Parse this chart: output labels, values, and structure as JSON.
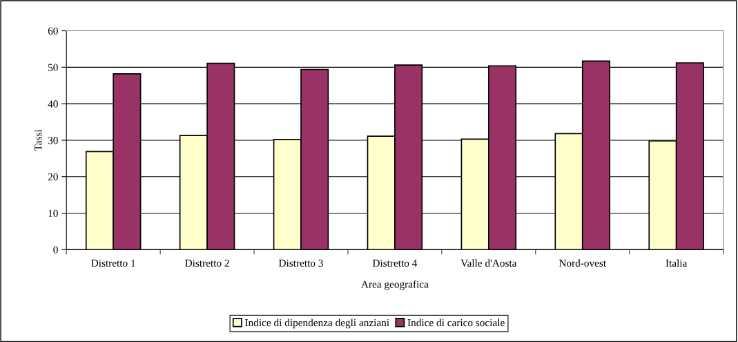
{
  "chart_data": {
    "type": "bar",
    "categories": [
      "Distretto 1",
      "Distretto 2",
      "Distretto 3",
      "Distretto 4",
      "Valle d'Aosta",
      "Nord-ovest",
      "Italia"
    ],
    "series": [
      {
        "name": "Indice di dipendenza degli anziani",
        "color": "#ffffcc",
        "values": [
          26.9,
          31.3,
          30.2,
          31.1,
          30.3,
          31.8,
          29.8
        ]
      },
      {
        "name": "Indice di carico sociale",
        "color": "#993366",
        "values": [
          48.2,
          51.1,
          49.4,
          50.6,
          50.4,
          51.7,
          51.2
        ]
      }
    ],
    "xlabel": "Area geografica",
    "ylabel": "Tassi",
    "ylim": [
      0,
      60
    ],
    "yticks": [
      0,
      10,
      20,
      30,
      40,
      50,
      60
    ],
    "grid": "y",
    "legend": "bottom"
  }
}
